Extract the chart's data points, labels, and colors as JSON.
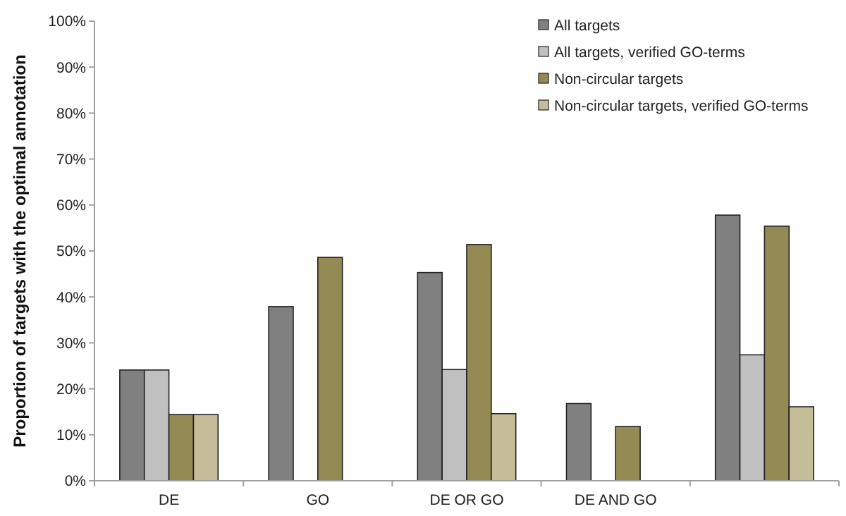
{
  "chart_data": {
    "type": "bar",
    "ylabel": "Proportion of targets with the optimal annotation",
    "categories": [
      "DE",
      "GO",
      "DE OR GO",
      "DE AND GO",
      null
    ],
    "series": [
      {
        "name": "All targets",
        "color": "#808080",
        "values": [
          24.1,
          37.9,
          45.3,
          16.8,
          57.8
        ]
      },
      {
        "name": "All targets, verified GO-terms",
        "color": "#c0c0c0",
        "values": [
          24.1,
          null,
          24.2,
          null,
          27.4
        ]
      },
      {
        "name": "Non-circular targets",
        "color": "#948a54",
        "values": [
          14.4,
          48.6,
          51.4,
          11.8,
          55.4
        ]
      },
      {
        "name": "Non-circular targets, verified GO-terms",
        "color": "#c4bd97",
        "values": [
          14.4,
          0,
          14.6,
          0,
          16.1
        ]
      }
    ],
    "ylim": [
      0,
      100
    ],
    "yticks": [
      {
        "value": 0,
        "label": "0%"
      },
      {
        "value": 10,
        "label": "10%"
      },
      {
        "value": 20,
        "label": "20%"
      },
      {
        "value": 30,
        "label": "30%"
      },
      {
        "value": 40,
        "label": "40%"
      },
      {
        "value": 50,
        "label": "50%"
      },
      {
        "value": 60,
        "label": "60%"
      },
      {
        "value": 70,
        "label": "70%"
      },
      {
        "value": 80,
        "label": "80%"
      },
      {
        "value": 90,
        "label": "90%"
      },
      {
        "value": 100,
        "label": "100%"
      }
    ],
    "legend": "top right"
  }
}
